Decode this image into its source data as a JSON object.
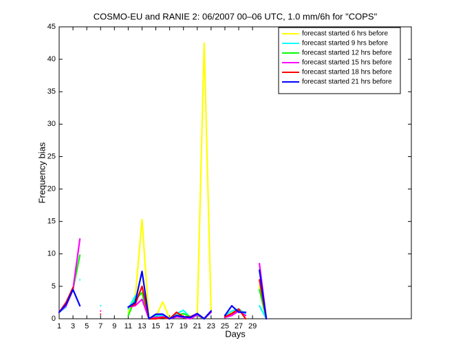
{
  "chart_data": {
    "type": "line",
    "title": "COSMO-EU and RANIE 2: 06/2007 00–06 UTC, 1.0 mm/6h for \"COPS\"",
    "x_label": "Days",
    "y_label": "Frequency bias",
    "x": [
      1,
      2,
      3,
      4,
      5,
      6,
      7,
      8,
      9,
      10,
      11,
      12,
      13,
      14,
      15,
      16,
      17,
      18,
      19,
      20,
      21,
      22,
      23,
      24,
      25,
      26,
      27,
      28,
      29,
      30,
      31
    ],
    "series": [
      {
        "name": "forecast started 6 hrs before",
        "color": "#ffff00",
        "values": [
          1,
          2,
          4.5,
          null,
          null,
          null,
          null,
          null,
          null,
          null,
          1,
          3,
          15.3,
          0,
          0.3,
          2.6,
          0,
          0.5,
          0.3,
          0.3,
          0.5,
          42.5,
          1.2,
          null,
          0.5,
          1,
          1.2,
          0.8,
          null,
          5,
          0
        ]
      },
      {
        "name": "forecast started 9 hrs before",
        "color": "#00ffff",
        "values": [
          1,
          1.8,
          null,
          6,
          null,
          null,
          2,
          null,
          null,
          null,
          1.5,
          3.5,
          4,
          0,
          0.5,
          0.5,
          0,
          0.8,
          1.3,
          0.2,
          0.8,
          0,
          1.2,
          null,
          0.5,
          1.2,
          1.5,
          0.8,
          null,
          2,
          0
        ]
      },
      {
        "name": "forecast started 12 hrs before",
        "color": "#00ff00",
        "values": [
          1,
          2,
          4.5,
          9.8,
          null,
          null,
          null,
          null,
          null,
          null,
          0.5,
          3,
          4,
          0,
          0.3,
          0.2,
          0,
          0.5,
          0.8,
          0.3,
          0.5,
          0,
          1,
          null,
          0.3,
          0.5,
          1.5,
          0,
          null,
          4.5,
          0
        ]
      },
      {
        "name": "forecast started 15 hrs before",
        "color": "#ff00ff",
        "values": [
          1,
          2,
          4.5,
          12.3,
          null,
          null,
          1.2,
          null,
          null,
          null,
          1.8,
          2,
          3,
          0,
          0.2,
          0.3,
          0,
          0.3,
          0.2,
          0,
          0.6,
          0,
          1,
          null,
          0.2,
          0.5,
          1.2,
          0.5,
          null,
          8.5,
          0
        ]
      },
      {
        "name": "forecast started 18 hrs before",
        "color": "#ff0000",
        "values": [
          1,
          2.5,
          4.8,
          null,
          null,
          null,
          0.7,
          null,
          null,
          null,
          1.8,
          2.2,
          5,
          0,
          0,
          0.2,
          0,
          1,
          0.3,
          0.3,
          0.8,
          0,
          1.2,
          null,
          0.3,
          0.8,
          1.5,
          0,
          null,
          6,
          0
        ]
      },
      {
        "name": "forecast started 21 hrs before",
        "color": "#0000ff",
        "values": [
          1,
          2.2,
          4.5,
          2,
          null,
          null,
          null,
          null,
          null,
          null,
          1.8,
          2.5,
          7.3,
          0,
          0.7,
          0.7,
          0,
          0.5,
          0.3,
          0.2,
          0.8,
          0,
          1.2,
          null,
          0.5,
          2,
          1,
          1,
          null,
          7.5,
          0
        ]
      }
    ],
    "xlim": [
      1,
      52
    ],
    "xticks": [
      1,
      3,
      5,
      7,
      9,
      11,
      13,
      15,
      17,
      19,
      21,
      23,
      25,
      27,
      29
    ],
    "ylim": [
      0,
      45
    ],
    "yticks": [
      0,
      5,
      10,
      15,
      20,
      25,
      30,
      35,
      40,
      45
    ],
    "legend": "upper right"
  }
}
